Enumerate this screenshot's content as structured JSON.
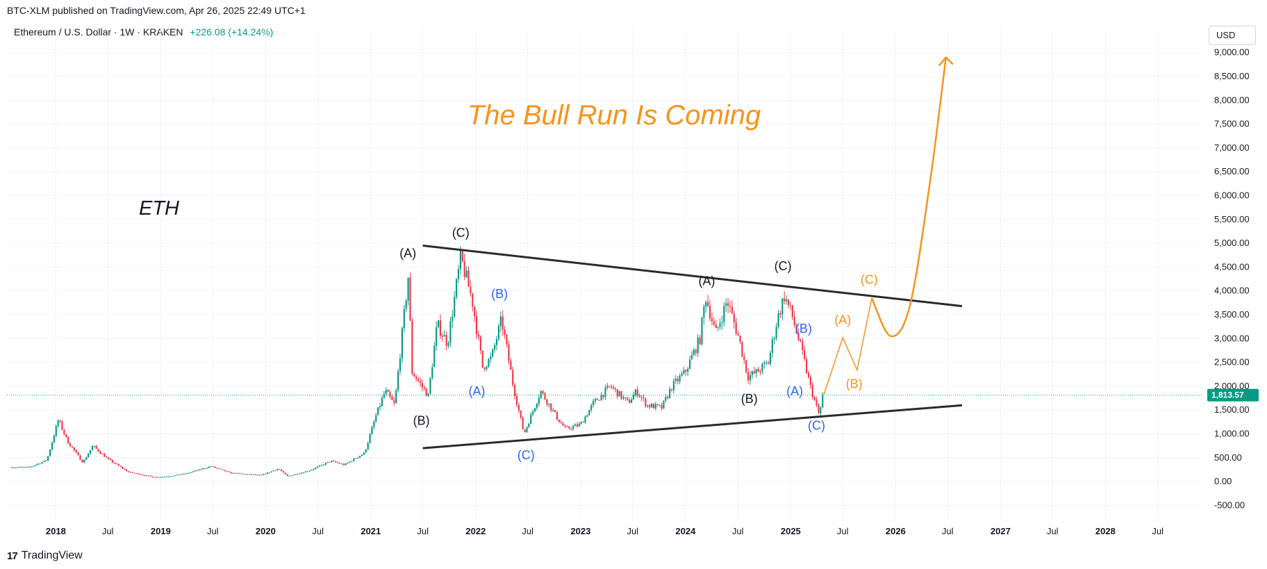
{
  "header": {
    "published_line": "BTC-XLM published on TradingView.com, Apr 26, 2025 22:49 UTC+1",
    "symbol": "Ethereum / U.S. Dollar · 1W · KRAKEN",
    "change": "+226.08 (+14.24%)",
    "currency": "USD"
  },
  "footer": {
    "brand": "TradingView",
    "logo_text": "17"
  },
  "colors": {
    "up": "#089981",
    "down": "#f23645",
    "accent": "#f7931a",
    "wave_blue": "#2962ff",
    "line": "#2a2a2a",
    "grid": "#f0f3fa",
    "price_tag": "#089981"
  },
  "chart_data": {
    "type": "candlestick",
    "title": "The Bull Run Is Coming",
    "annotation_text": "ETH",
    "ylim": [
      -800,
      9200
    ],
    "y_ticks": [
      -500,
      0,
      500,
      1000,
      1500,
      2000,
      2500,
      3000,
      3500,
      4000,
      4500,
      5000,
      5500,
      6000,
      6500,
      7000,
      7500,
      8000,
      8500,
      9000
    ],
    "y_tick_labels": [
      "-500.00",
      "0.00",
      "500.00",
      "1,000.00",
      "1,500.00",
      "2,000.00",
      "2,500.00",
      "3,000.00",
      "3,500.00",
      "4,000.00",
      "4,500.00",
      "5,000.00",
      "5,500.00",
      "6,000.00",
      "6,500.00",
      "7,000.00",
      "7,500.00",
      "8,000.00",
      "8,500.00",
      "9,000.00"
    ],
    "xlim": [
      "2017-07-15",
      "2028-12-01"
    ],
    "x_ticks": [
      {
        "date": "2018-01-01",
        "label": "2018",
        "type": "year"
      },
      {
        "date": "2018-07-01",
        "label": "Jul",
        "type": "month"
      },
      {
        "date": "2019-01-01",
        "label": "2019",
        "type": "year"
      },
      {
        "date": "2019-07-01",
        "label": "Jul",
        "type": "month"
      },
      {
        "date": "2020-01-01",
        "label": "2020",
        "type": "year"
      },
      {
        "date": "2020-07-01",
        "label": "Jul",
        "type": "month"
      },
      {
        "date": "2021-01-01",
        "label": "2021",
        "type": "year"
      },
      {
        "date": "2021-07-01",
        "label": "Jul",
        "type": "month"
      },
      {
        "date": "2022-01-01",
        "label": "2022",
        "type": "year"
      },
      {
        "date": "2022-07-01",
        "label": "Jul",
        "type": "month"
      },
      {
        "date": "2023-01-01",
        "label": "2023",
        "type": "year"
      },
      {
        "date": "2023-07-01",
        "label": "Jul",
        "type": "month"
      },
      {
        "date": "2024-01-01",
        "label": "2024",
        "type": "year"
      },
      {
        "date": "2024-07-01",
        "label": "Jul",
        "type": "month"
      },
      {
        "date": "2025-01-01",
        "label": "2025",
        "type": "year"
      },
      {
        "date": "2025-07-01",
        "label": "Jul",
        "type": "month"
      },
      {
        "date": "2026-01-01",
        "label": "2026",
        "type": "year"
      },
      {
        "date": "2026-07-01",
        "label": "Jul",
        "type": "month"
      },
      {
        "date": "2027-01-01",
        "label": "2027",
        "type": "year"
      },
      {
        "date": "2027-07-01",
        "label": "Jul",
        "type": "month"
      },
      {
        "date": "2028-01-01",
        "label": "2028",
        "type": "year"
      },
      {
        "date": "2028-07-01",
        "label": "Jul",
        "type": "month"
      }
    ],
    "current_price": 1813.57,
    "current_price_label": "1,813.57",
    "price_path": [
      [
        "2017-08-01",
        300
      ],
      [
        "2017-10-01",
        300
      ],
      [
        "2017-12-01",
        450
      ],
      [
        "2018-01-10",
        1300
      ],
      [
        "2018-02-10",
        850
      ],
      [
        "2018-04-05",
        400
      ],
      [
        "2018-05-10",
        750
      ],
      [
        "2018-07-01",
        470
      ],
      [
        "2018-09-10",
        200
      ],
      [
        "2018-12-10",
        90
      ],
      [
        "2019-02-01",
        110
      ],
      [
        "2019-04-01",
        170
      ],
      [
        "2019-06-25",
        320
      ],
      [
        "2019-09-01",
        180
      ],
      [
        "2019-12-15",
        130
      ],
      [
        "2020-02-15",
        270
      ],
      [
        "2020-03-16",
        110
      ],
      [
        "2020-06-01",
        230
      ],
      [
        "2020-08-15",
        430
      ],
      [
        "2020-10-01",
        350
      ],
      [
        "2020-12-10",
        600
      ],
      [
        "2021-01-20",
        1400
      ],
      [
        "2021-02-20",
        1900
      ],
      [
        "2021-03-25",
        1600
      ],
      [
        "2021-05-11",
        4300
      ],
      [
        "2021-05-25",
        2300
      ],
      [
        "2021-07-20",
        1800
      ],
      [
        "2021-08-20",
        3300
      ],
      [
        "2021-09-25",
        2900
      ],
      [
        "2021-11-10",
        4700
      ],
      [
        "2021-12-20",
        3800
      ],
      [
        "2022-01-25",
        2400
      ],
      [
        "2022-02-25",
        2600
      ],
      [
        "2022-04-01",
        3400
      ],
      [
        "2022-05-12",
        2000
      ],
      [
        "2022-06-18",
        1000
      ],
      [
        "2022-08-15",
        1900
      ],
      [
        "2022-10-15",
        1300
      ],
      [
        "2022-11-10",
        1100
      ],
      [
        "2023-01-01",
        1200
      ],
      [
        "2023-02-15",
        1650
      ],
      [
        "2023-04-15",
        2000
      ],
      [
        "2023-06-15",
        1650
      ],
      [
        "2023-07-15",
        1900
      ],
      [
        "2023-08-20",
        1600
      ],
      [
        "2023-10-10",
        1550
      ],
      [
        "2023-11-15",
        2000
      ],
      [
        "2023-12-31",
        2300
      ],
      [
        "2024-02-20",
        3000
      ],
      [
        "2024-03-11",
        3900
      ],
      [
        "2024-04-15",
        3100
      ],
      [
        "2024-05-25",
        3800
      ],
      [
        "2024-07-05",
        3000
      ],
      [
        "2024-08-05",
        2200
      ],
      [
        "2024-09-06",
        2300
      ],
      [
        "2024-10-15",
        2500
      ],
      [
        "2024-11-15",
        3400
      ],
      [
        "2024-12-10",
        3900
      ],
      [
        "2025-01-05",
        3500
      ],
      [
        "2025-02-10",
        2700
      ],
      [
        "2025-03-10",
        2000
      ],
      [
        "2025-04-09",
        1400
      ],
      [
        "2025-04-26",
        1813
      ]
    ],
    "trendlines": [
      {
        "name": "resistance",
        "from": [
          "2021-07-01",
          4950
        ],
        "to": [
          "2026-08-20",
          3680
        ]
      },
      {
        "name": "support",
        "from": [
          "2021-07-01",
          700
        ],
        "to": [
          "2026-08-20",
          1600
        ]
      }
    ],
    "projection_thin": [
      [
        "2025-04-26",
        1820
      ],
      [
        "2025-07-01",
        3020
      ],
      [
        "2025-08-20",
        2340
      ],
      [
        "2025-10-10",
        3850
      ]
    ],
    "projection_thick": [
      [
        "2025-10-10",
        3850
      ],
      [
        "2025-12-15",
        3050
      ],
      [
        "2026-02-20",
        3700
      ],
      [
        "2026-05-01",
        6300
      ],
      [
        "2026-06-25",
        8900
      ]
    ],
    "wave_labels": [
      {
        "text": "(A)",
        "date": "2021-05-10",
        "price": 4700,
        "color": "black"
      },
      {
        "text": "(C)",
        "date": "2021-11-10",
        "price": 5130,
        "color": "black"
      },
      {
        "text": "(B)",
        "date": "2021-06-26",
        "price": 1190,
        "color": "black"
      },
      {
        "text": "(B)",
        "date": "2022-03-25",
        "price": 3850,
        "color": "blue"
      },
      {
        "text": "(A)",
        "date": "2022-01-05",
        "price": 1810,
        "color": "blue"
      },
      {
        "text": "(C)",
        "date": "2022-06-25",
        "price": 470,
        "color": "blue"
      },
      {
        "text": "(A)",
        "date": "2024-03-15",
        "price": 4120,
        "color": "black"
      },
      {
        "text": "(C)",
        "date": "2024-12-05",
        "price": 4430,
        "color": "black"
      },
      {
        "text": "(B)",
        "date": "2024-08-10",
        "price": 1650,
        "color": "black"
      },
      {
        "text": "(B)",
        "date": "2025-02-15",
        "price": 3120,
        "color": "blue"
      },
      {
        "text": "(A)",
        "date": "2025-01-15",
        "price": 1810,
        "color": "blue"
      },
      {
        "text": "(C)",
        "date": "2025-04-01",
        "price": 1090,
        "color": "blue"
      },
      {
        "text": "(A)",
        "date": "2025-07-01",
        "price": 3300,
        "color": "accent"
      },
      {
        "text": "(B)",
        "date": "2025-08-10",
        "price": 1960,
        "color": "accent"
      },
      {
        "text": "(C)",
        "date": "2025-10-01",
        "price": 4150,
        "color": "accent"
      }
    ]
  }
}
